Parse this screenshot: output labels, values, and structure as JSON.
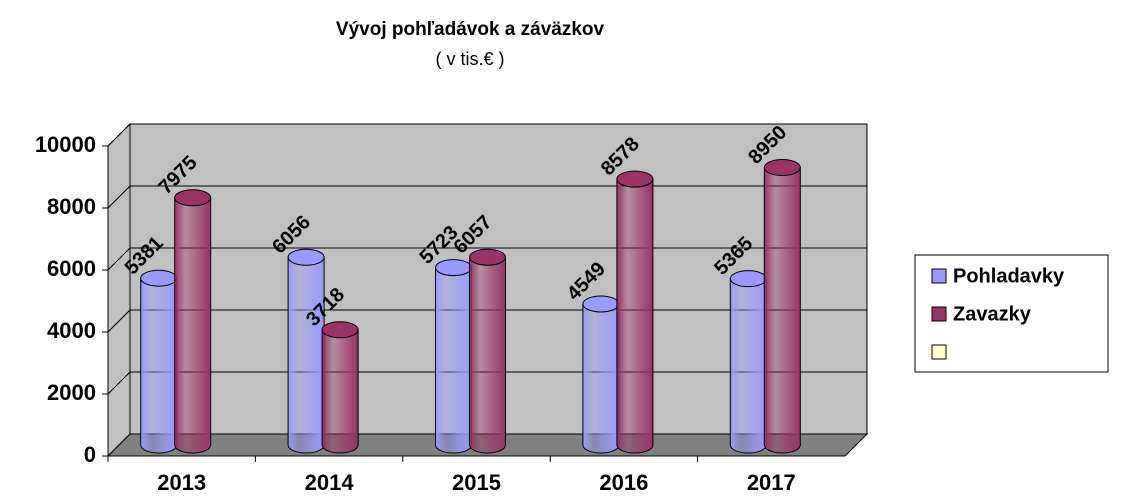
{
  "chart_data": {
    "type": "bar3d",
    "title": "Vývoj pohľadávok a záväzkov",
    "subtitle": "( v tis.€ )",
    "categories": [
      "2013",
      "2014",
      "2015",
      "2016",
      "2017"
    ],
    "series": [
      {
        "name": "Pohladavky",
        "color": "#9999ff",
        "values": [
          5381,
          6056,
          5723,
          4549,
          5365
        ]
      },
      {
        "name": "Zavazky",
        "color": "#993366",
        "values": [
          7975,
          3718,
          6057,
          8578,
          8950
        ]
      }
    ],
    "ylim": [
      0,
      10000
    ],
    "yticks": [
      0,
      2000,
      4000,
      6000,
      8000,
      10000
    ],
    "grid": true,
    "legend": "right"
  }
}
